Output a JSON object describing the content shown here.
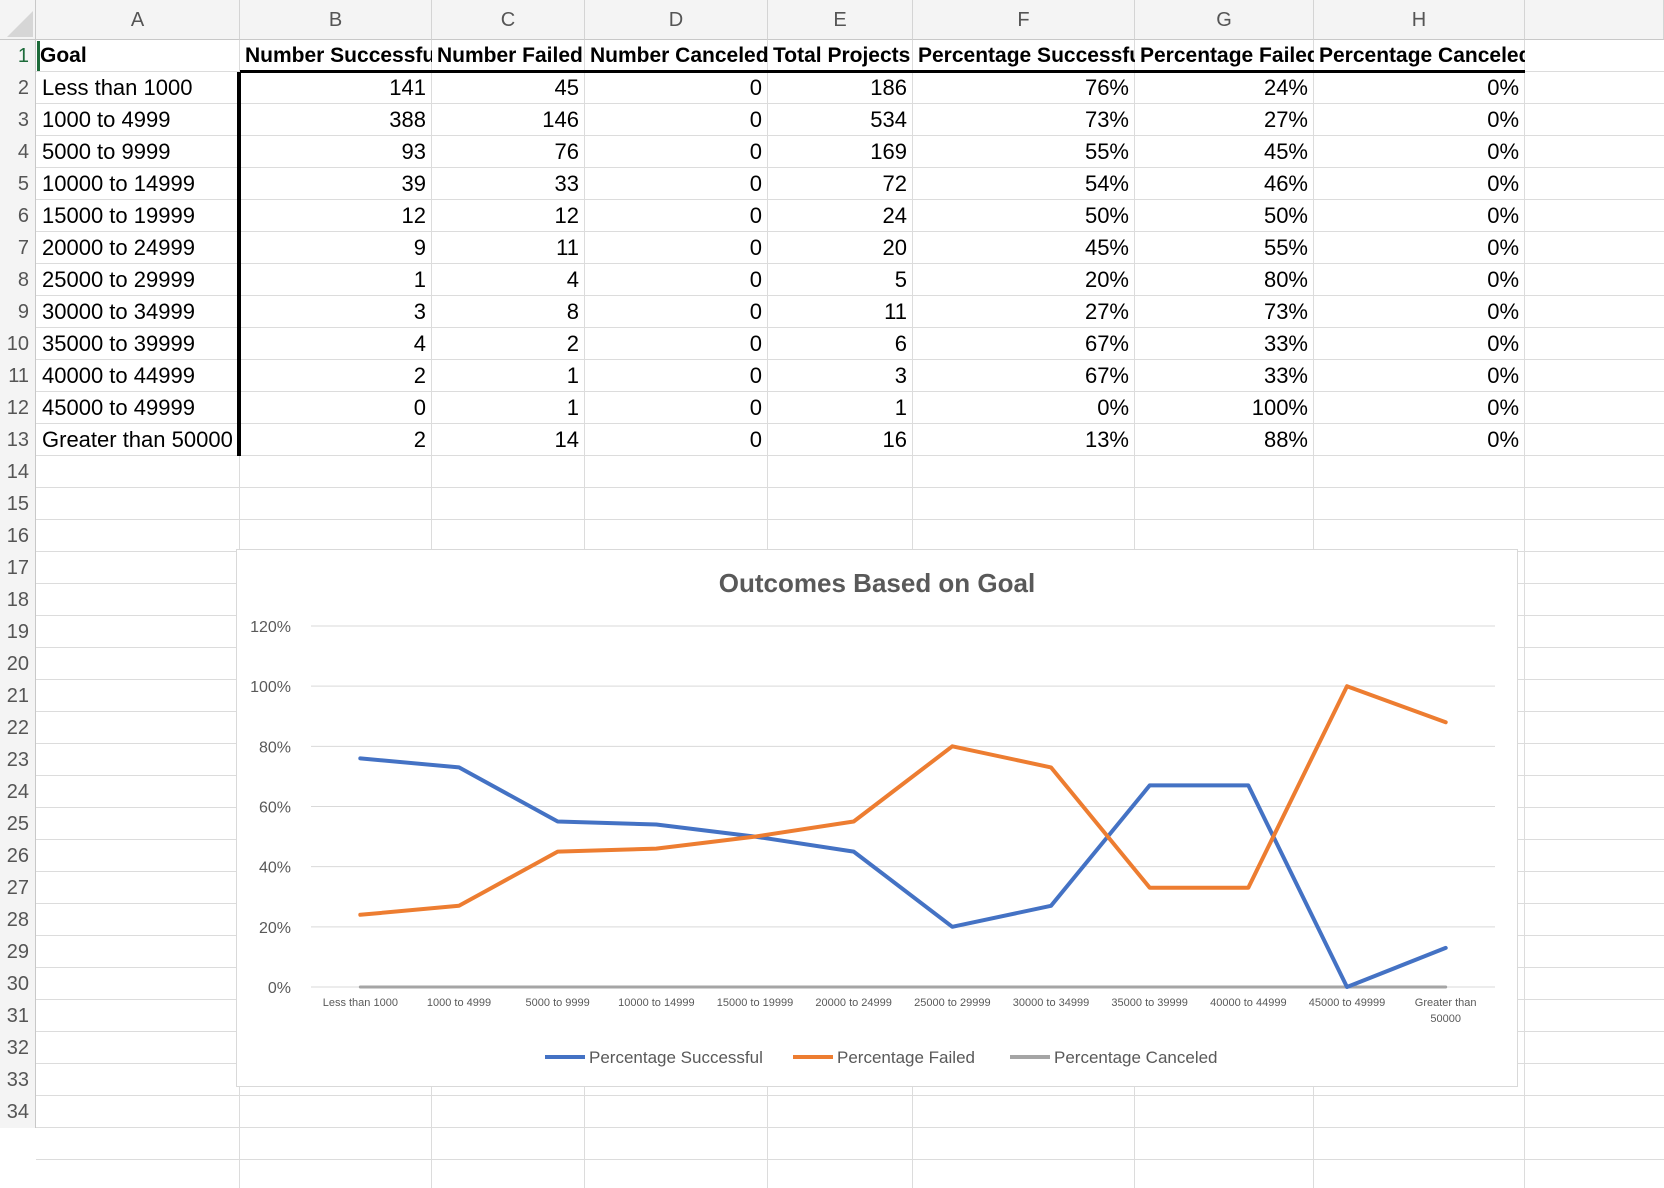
{
  "columns": [
    "A",
    "B",
    "C",
    "D",
    "E",
    "F",
    "G",
    "H"
  ],
  "row_numbers": [
    "1",
    "2",
    "3",
    "4",
    "5",
    "6",
    "7",
    "8",
    "9",
    "10",
    "11",
    "12",
    "13",
    "14",
    "15",
    "16",
    "17",
    "18",
    "19",
    "20",
    "21",
    "22",
    "23",
    "24",
    "25",
    "26",
    "27",
    "28",
    "29",
    "30",
    "31",
    "32",
    "33",
    "34"
  ],
  "headers": [
    "Goal",
    "Number Successful",
    "Number Failed",
    "Number Canceled",
    "Total Projects",
    "Percentage Successful",
    "Percentage Failed",
    "Percentage Canceled"
  ],
  "rows": [
    [
      "Less than 1000",
      "141",
      "45",
      "0",
      "186",
      "76%",
      "24%",
      "0%"
    ],
    [
      "1000 to 4999",
      "388",
      "146",
      "0",
      "534",
      "73%",
      "27%",
      "0%"
    ],
    [
      "5000 to 9999",
      "93",
      "76",
      "0",
      "169",
      "55%",
      "45%",
      "0%"
    ],
    [
      "10000 to 14999",
      "39",
      "33",
      "0",
      "72",
      "54%",
      "46%",
      "0%"
    ],
    [
      "15000 to 19999",
      "12",
      "12",
      "0",
      "24",
      "50%",
      "50%",
      "0%"
    ],
    [
      "20000 to 24999",
      "9",
      "11",
      "0",
      "20",
      "45%",
      "55%",
      "0%"
    ],
    [
      "25000 to 29999",
      "1",
      "4",
      "0",
      "5",
      "20%",
      "80%",
      "0%"
    ],
    [
      "30000 to 34999",
      "3",
      "8",
      "0",
      "11",
      "27%",
      "73%",
      "0%"
    ],
    [
      "35000 to 39999",
      "4",
      "2",
      "0",
      "6",
      "67%",
      "33%",
      "0%"
    ],
    [
      "40000 to 44999",
      "2",
      "1",
      "0",
      "3",
      "67%",
      "33%",
      "0%"
    ],
    [
      "45000 to 49999",
      "0",
      "1",
      "0",
      "1",
      "0%",
      "100%",
      "0%"
    ],
    [
      "Greater than 50000",
      "2",
      "14",
      "0",
      "16",
      "13%",
      "88%",
      "0%"
    ]
  ],
  "colors": {
    "successful": "#4472c4",
    "failed": "#ed7d31",
    "canceled": "#a5a5a5",
    "active_row_header": "#1d6b3a"
  },
  "chart_data": {
    "type": "line",
    "title": "Outcomes Based on Goal",
    "categories": [
      "Less than 1000",
      "1000 to 4999",
      "5000 to 9999",
      "10000 to 14999",
      "15000 to 19999",
      "20000 to 24999",
      "25000 to 29999",
      "30000 to 34999",
      "35000 to 39999",
      "40000 to 44999",
      "45000 to 49999",
      "Greater than 50000"
    ],
    "series": [
      {
        "name": "Percentage Successful",
        "values": [
          76,
          73,
          55,
          54,
          50,
          45,
          20,
          27,
          67,
          67,
          0,
          13
        ]
      },
      {
        "name": "Percentage Failed",
        "values": [
          24,
          27,
          45,
          46,
          50,
          55,
          80,
          73,
          33,
          33,
          100,
          88
        ]
      },
      {
        "name": "Percentage Canceled",
        "values": [
          0,
          0,
          0,
          0,
          0,
          0,
          0,
          0,
          0,
          0,
          0,
          0
        ]
      }
    ],
    "y_ticks": [
      "0%",
      "20%",
      "40%",
      "60%",
      "80%",
      "100%",
      "120%"
    ],
    "ylim": [
      0,
      120
    ],
    "grid": true,
    "legend": "bottom",
    "xlabel": "",
    "ylabel": ""
  }
}
